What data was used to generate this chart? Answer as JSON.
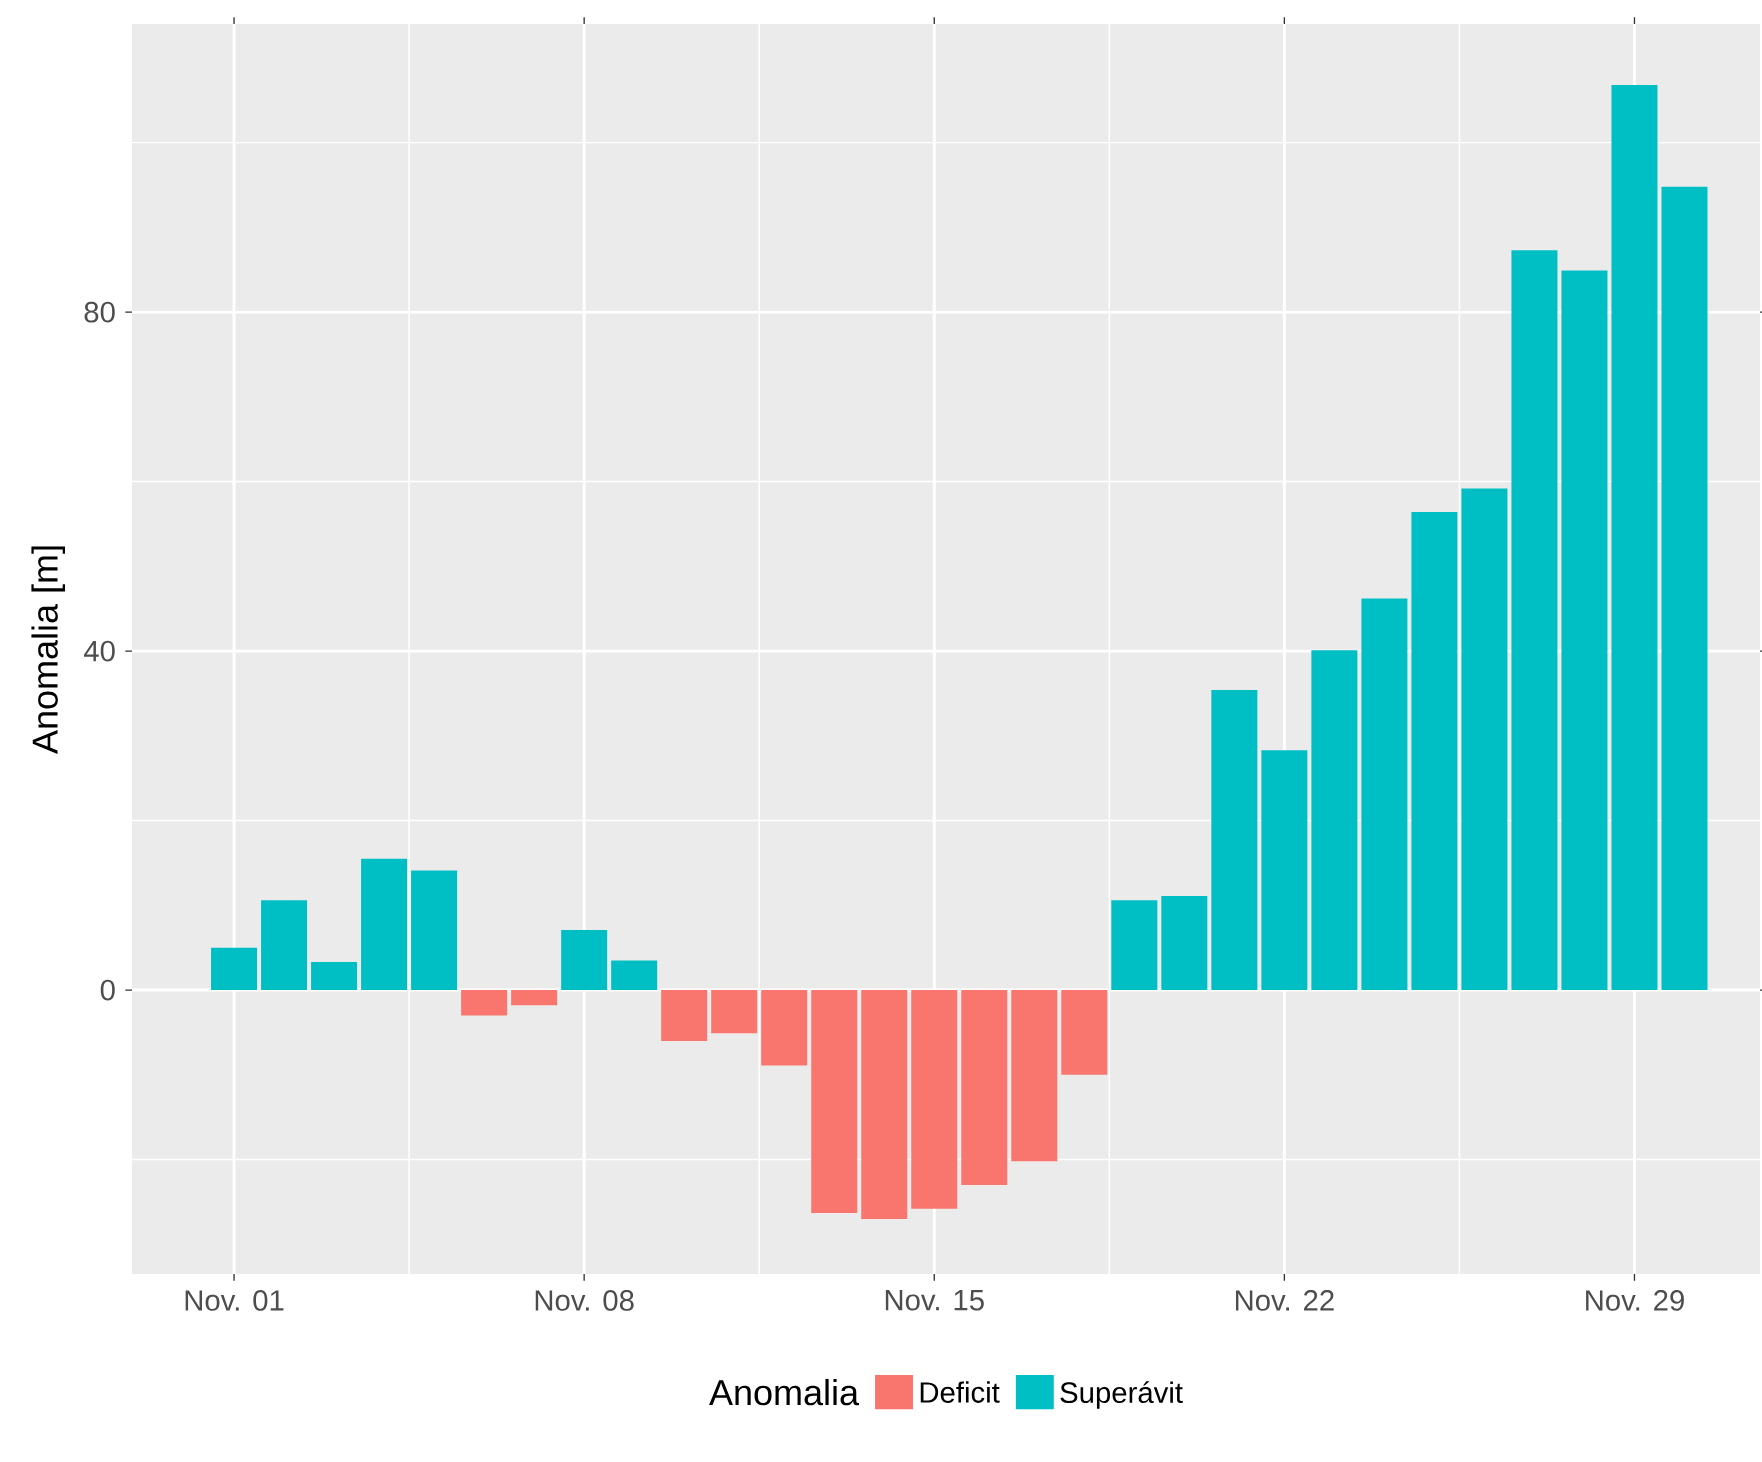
{
  "chart_data": {
    "type": "bar",
    "ylabel": "Anomalia [m]",
    "legend_title": "Anomalia",
    "categories": [
      "Nov. 01",
      null,
      null,
      null,
      null,
      null,
      null,
      "Nov. 08",
      null,
      null,
      null,
      null,
      null,
      null,
      "Nov. 15",
      null,
      null,
      null,
      null,
      null,
      null,
      "Nov. 22",
      null,
      null,
      null,
      null,
      null,
      null,
      "Nov. 29",
      null
    ],
    "series": [
      {
        "name": "Deficit",
        "color": "#f8766d",
        "values": [
          null,
          null,
          null,
          null,
          null,
          -3.0,
          -1.8,
          null,
          null,
          -6.0,
          -5.1,
          -8.9,
          -26.3,
          -27.0,
          -25.8,
          -23.0,
          -20.2,
          -10.0,
          null,
          null,
          null,
          null,
          null,
          null,
          null,
          null,
          null,
          null,
          null,
          null
        ]
      },
      {
        "name": "Superávit",
        "color": "#00bfc4",
        "values": [
          5.0,
          10.6,
          3.3,
          15.5,
          14.1,
          null,
          null,
          7.1,
          3.5,
          null,
          null,
          null,
          null,
          null,
          null,
          null,
          null,
          null,
          10.6,
          11.1,
          35.4,
          28.3,
          40.1,
          46.2,
          56.4,
          59.2,
          87.3,
          84.9,
          106.8,
          94.8
        ]
      }
    ],
    "ylim": [
      -33.5,
      114
    ],
    "yticks": [
      0,
      40,
      80
    ],
    "grid": true,
    "legend": "bottom"
  }
}
